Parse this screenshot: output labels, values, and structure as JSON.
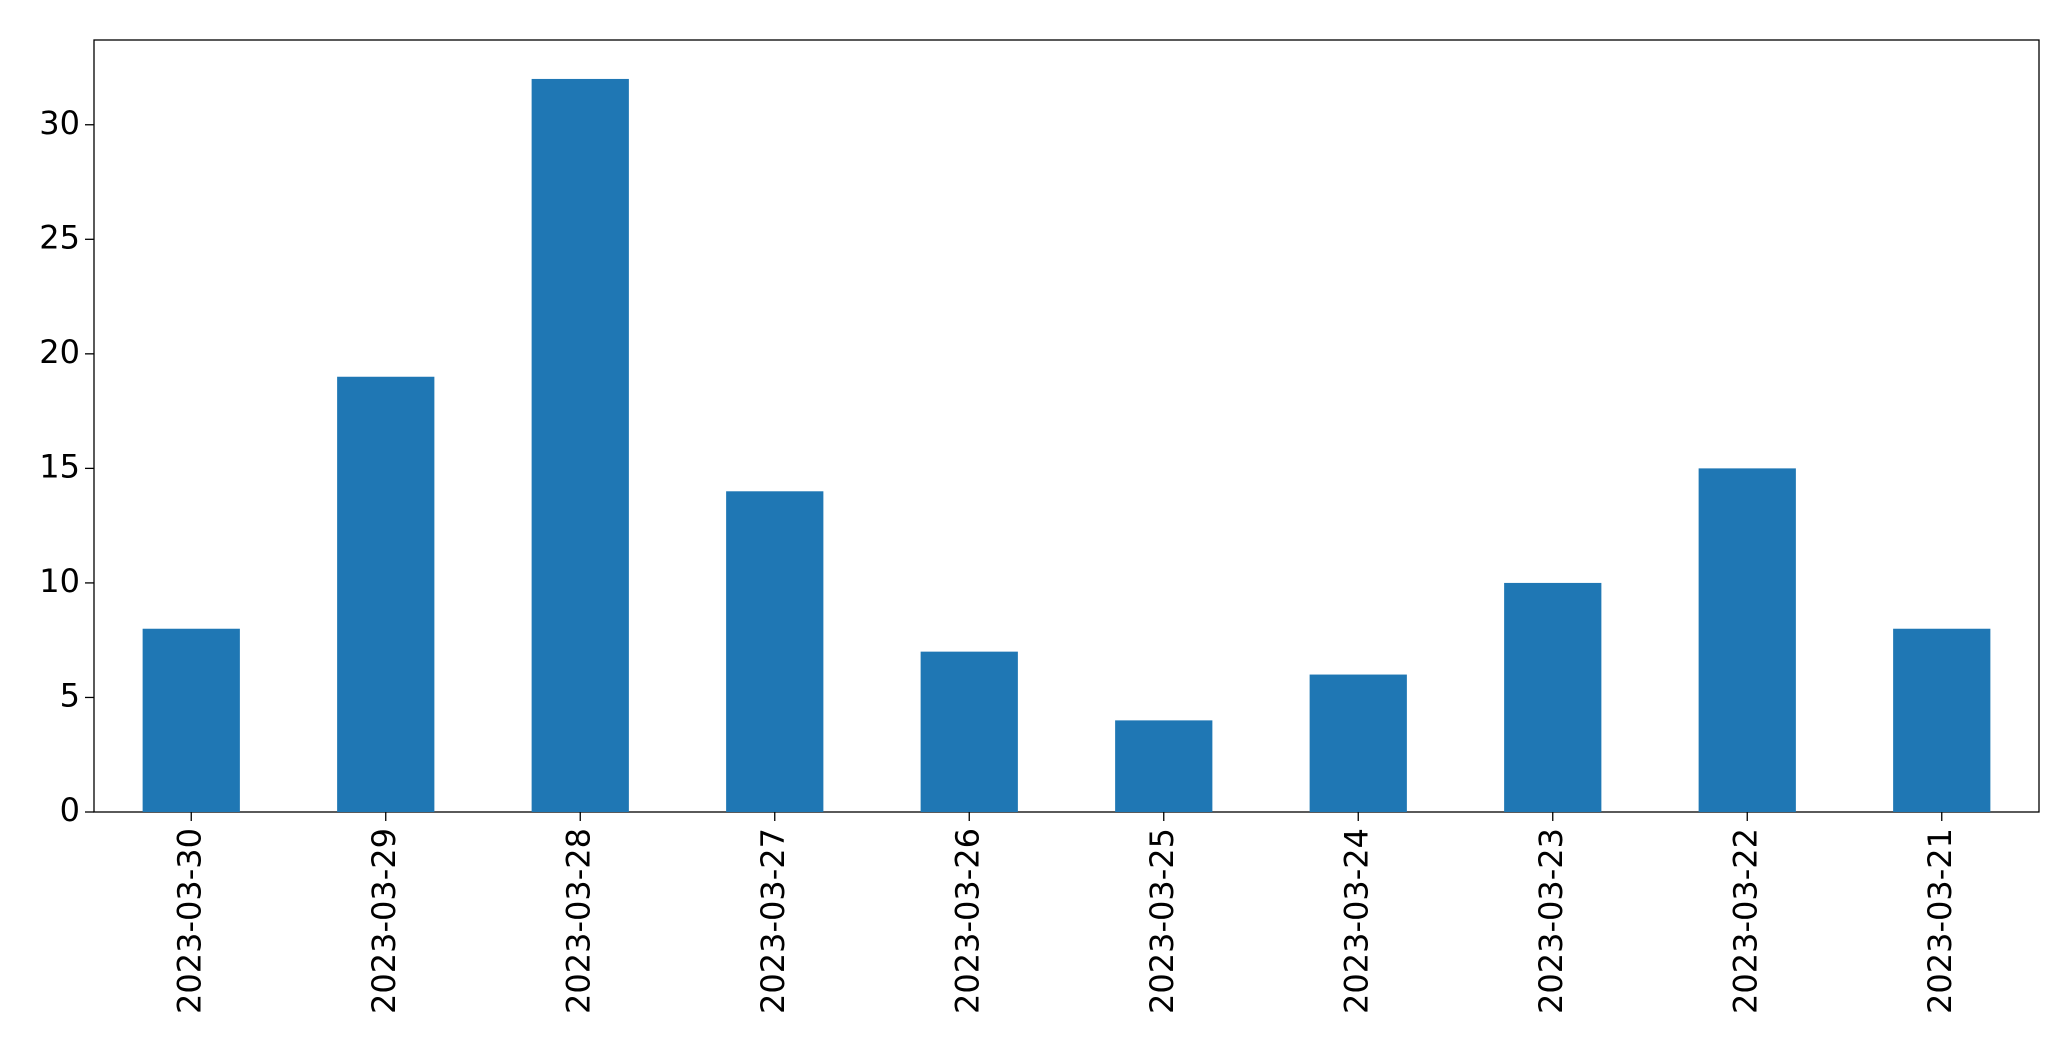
{
  "chart_data": {
    "type": "bar",
    "categories": [
      "2023-03-30",
      "2023-03-29",
      "2023-03-28",
      "2023-03-27",
      "2023-03-26",
      "2023-03-25",
      "2023-03-24",
      "2023-03-23",
      "2023-03-22",
      "2023-03-21"
    ],
    "values": [
      8,
      19,
      32,
      14,
      7,
      4,
      6,
      10,
      15,
      8
    ],
    "color": "#1f77b4",
    "ylim": [
      0,
      33.7
    ],
    "yticks": [
      0,
      5,
      10,
      15,
      20,
      25,
      30
    ],
    "grid": false
  }
}
